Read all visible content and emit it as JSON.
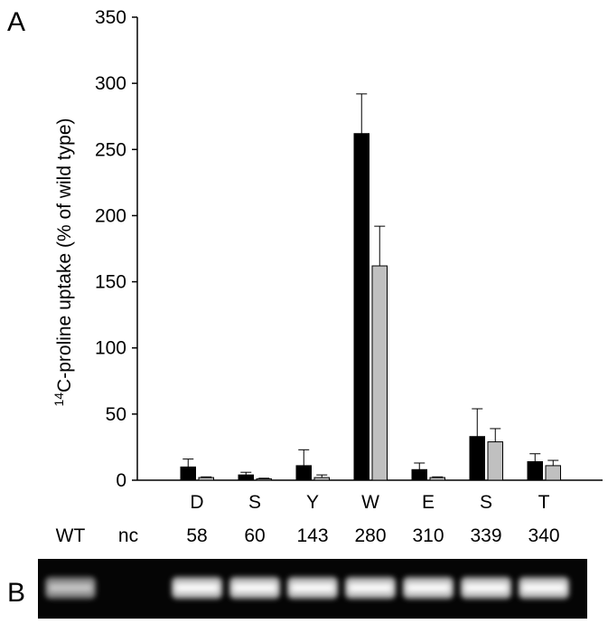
{
  "chart_data": {
    "type": "bar",
    "panel_labels": [
      "A",
      "B"
    ],
    "y_label_sup": "14",
    "y_label": "C-proline uptake (% of wild type)",
    "categories": [
      "D",
      "S",
      "Y",
      "W",
      "E",
      "S",
      "T"
    ],
    "lane_labels": [
      "WT",
      "nc",
      "58",
      "60",
      "143",
      "280",
      "310",
      "339",
      "340"
    ],
    "series": [
      {
        "color": "#000000",
        "values": [
          10,
          4,
          11,
          262,
          8,
          33,
          14
        ],
        "errors": [
          6,
          2,
          12,
          30,
          5,
          21,
          6
        ]
      },
      {
        "color": "#c0c0c0",
        "values": [
          2,
          1,
          2,
          162,
          2,
          29,
          11
        ],
        "errors": [
          0.5,
          0.5,
          2,
          30,
          0.5,
          10,
          4
        ]
      }
    ],
    "ylim": [
      0,
      350
    ],
    "yticks": [
      0,
      50,
      100,
      150,
      200,
      250,
      300,
      350
    ]
  }
}
